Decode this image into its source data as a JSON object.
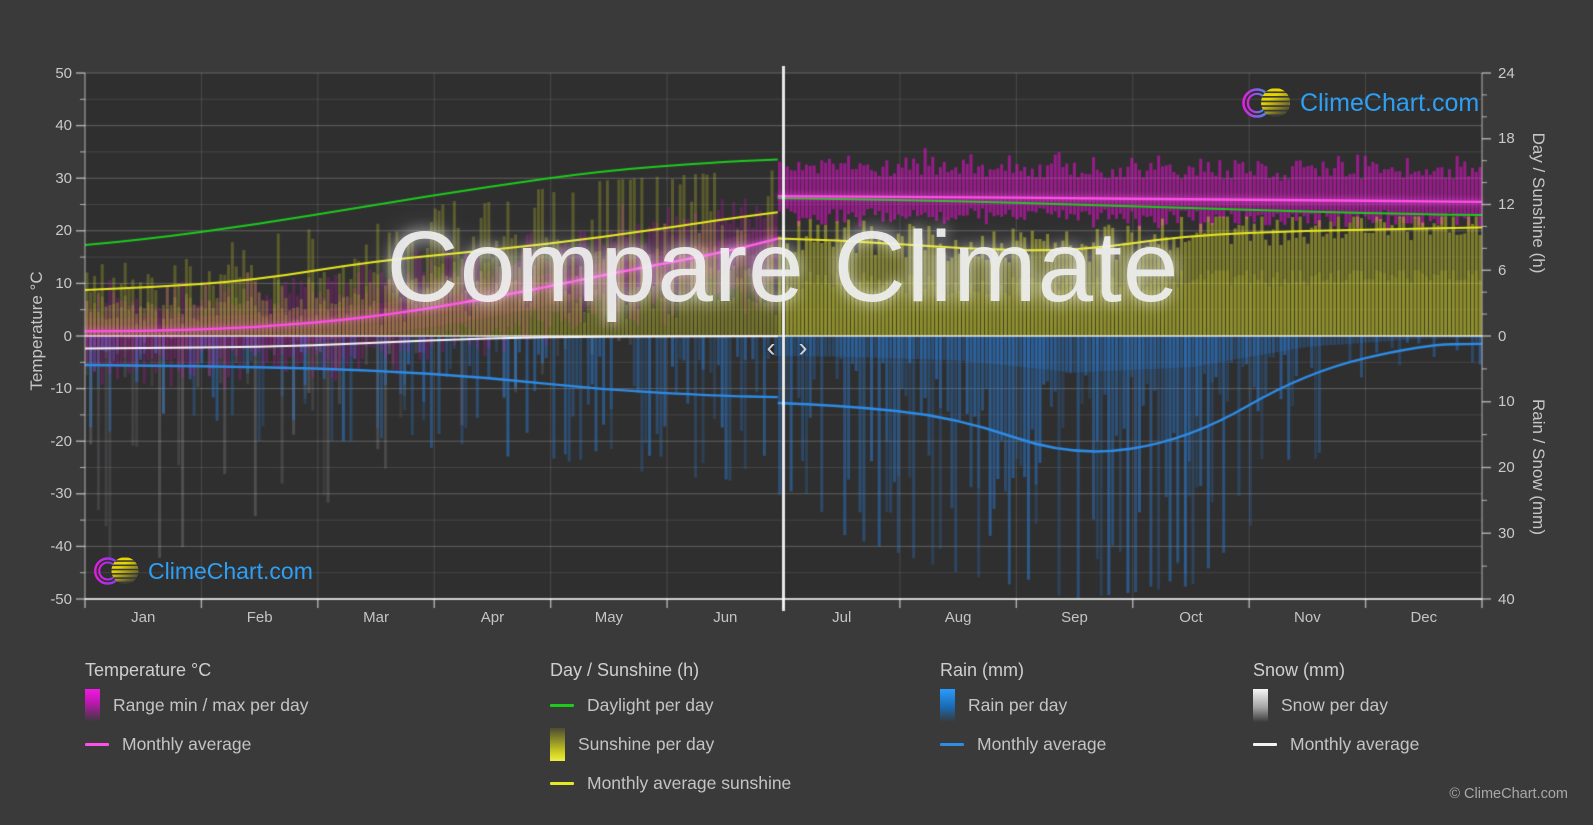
{
  "page": {
    "background": "#3a3a3a",
    "plot_background": "#2f2f2f"
  },
  "brand": {
    "name": "ClimeChart.com",
    "copyright": "© ClimeChart.com",
    "logo_text_color": "#2da0f5"
  },
  "watermark": {
    "text": "Compare Climate"
  },
  "nav": {
    "prev": "‹",
    "next": "›"
  },
  "axes": {
    "left_title": "Temperature °C",
    "left_ticks": [
      50,
      40,
      30,
      20,
      10,
      0,
      -10,
      -20,
      -30,
      -40,
      -50
    ],
    "right_top_title": "Day / Sunshine (h)",
    "right_day_ticks": [
      24,
      18,
      12,
      6
    ],
    "right_bottom_title": "Rain / Snow (mm)",
    "right_mm_ticks": [
      0,
      10,
      20,
      30,
      40
    ],
    "months": [
      "Jan",
      "Feb",
      "Mar",
      "Apr",
      "May",
      "Jun",
      "Jul",
      "Aug",
      "Sep",
      "Oct",
      "Nov",
      "Dec"
    ]
  },
  "legend": {
    "temperature": {
      "title": "Temperature °C",
      "items": [
        {
          "swatch": "bar-magenta",
          "label": "Range min / max per day"
        },
        {
          "swatch": "line-magenta",
          "label": "Monthly average"
        }
      ]
    },
    "day_sunshine": {
      "title": "Day / Sunshine (h)",
      "items": [
        {
          "swatch": "line-green",
          "label": "Daylight per day"
        },
        {
          "swatch": "bar-yellow",
          "label": "Sunshine per day"
        },
        {
          "swatch": "line-yellow",
          "label": "Monthly average sunshine"
        }
      ]
    },
    "rain": {
      "title": "Rain (mm)",
      "items": [
        {
          "swatch": "bar-blue",
          "label": "Rain per day"
        },
        {
          "swatch": "line-blue",
          "label": "Monthly average"
        }
      ]
    },
    "snow": {
      "title": "Snow (mm)",
      "items": [
        {
          "swatch": "bar-white",
          "label": "Snow per day"
        },
        {
          "swatch": "line-white",
          "label": "Monthly average"
        }
      ]
    }
  },
  "chart_data": {
    "type": "line",
    "title": "Compare Climate",
    "note": "Split comparison chart: Jan–Jun shows one location, Jul–Dec another, separated by a vertical divider with prev/next arrows at end of June. Daily bars give texture; lines are monthly averages.",
    "months": [
      "Jan",
      "Feb",
      "Mar",
      "Apr",
      "May",
      "Jun",
      "Jul",
      "Aug",
      "Sep",
      "Oct",
      "Nov",
      "Dec"
    ],
    "axes": {
      "temperature_c": {
        "range": [
          -50,
          50
        ],
        "side": "left",
        "gridline_step": 5
      },
      "day_sunshine_h": {
        "range": [
          0,
          24
        ],
        "side": "right-top"
      },
      "rain_snow_mm": {
        "range": [
          0,
          40
        ],
        "side": "right-bottom",
        "direction": "downward"
      }
    },
    "series": {
      "daylight_h": {
        "label": "Daylight per day",
        "kind": "line",
        "color": "#1ccb1c",
        "axis": "day_sunshine_h",
        "monthly": [
          8.8,
          10.2,
          11.9,
          13.6,
          15.1,
          15.9,
          12.5,
          12.3,
          12.0,
          11.7,
          11.35,
          11.1
        ],
        "endpoints": [
          8.3,
          16.1,
          12.6,
          11.05
        ]
      },
      "sunshine_avg_h": {
        "label": "Monthly average sunshine",
        "kind": "line",
        "color": "#e8e820",
        "axis": "day_sunshine_h",
        "monthly": [
          4.4,
          5.1,
          6.8,
          7.8,
          9.0,
          10.6,
          8.8,
          8.0,
          7.7,
          9.2,
          9.6,
          9.8
        ],
        "endpoints": [
          4.2,
          11.3,
          8.9,
          9.9
        ]
      },
      "sunshine_daily_h": {
        "label": "Sunshine per day",
        "kind": "bar-up",
        "color": "#caca2d",
        "axis": "day_sunshine_h"
      },
      "temp_avg_c": {
        "label": "Monthly average",
        "kind": "line",
        "color": "#ff4fe8",
        "axis": "temperature_c",
        "monthly": [
          0.9,
          1.6,
          3.5,
          7.0,
          11.6,
          15.8,
          26.5,
          26.4,
          26.2,
          26.0,
          25.8,
          25.6
        ],
        "endpoints": [
          0.9,
          18.5,
          26.6,
          25.5
        ]
      },
      "temp_range_c": {
        "label": "Range min / max per day",
        "kind": "band",
        "color": "#ff0ae6",
        "axis": "temperature_c",
        "monthly_max": [
          5,
          6,
          8.5,
          12,
          17,
          21.5,
          31.5,
          31.3,
          31.0,
          30.8,
          30.6,
          30.5
        ],
        "monthly_min": [
          -3.5,
          -3,
          -1,
          2.5,
          6.5,
          10.5,
          23.5,
          23.4,
          23.2,
          23.0,
          22.8,
          22.7
        ]
      },
      "rain_avg_mm": {
        "label": "Monthly average",
        "kind": "line",
        "color": "#2d8ce6",
        "axis": "rain_snow_mm",
        "monthly": [
          4.5,
          4.7,
          5.2,
          6.3,
          8.2,
          9.1,
          10.5,
          12.3,
          18.5,
          15.8,
          5.5,
          1.3
        ],
        "endpoints": [
          4.4,
          9.3,
          10.2,
          1.2
        ]
      },
      "rain_daily_mm": {
        "label": "Rain per day",
        "kind": "bar-down",
        "color": "#287dd7",
        "axis": "rain_snow_mm",
        "daily_max_monthly": [
          16,
          16,
          16,
          18,
          20,
          22,
          30,
          36,
          40,
          38,
          20,
          8
        ]
      },
      "snow_avg_mm": {
        "label": "Monthly average",
        "kind": "line",
        "color": "#f2f2f2",
        "axis": "rain_snow_mm",
        "monthly": [
          1.8,
          1.7,
          1.1,
          0.3,
          0.08,
          0.05,
          0,
          0,
          0,
          0,
          0,
          0
        ],
        "endpoints": [
          1.9,
          0.05,
          0,
          0
        ]
      },
      "snow_daily_mm": {
        "label": "Snow per day",
        "kind": "bar-down",
        "color": "#cdcdd7",
        "axis": "rain_snow_mm",
        "daily_max_monthly": [
          36,
          36,
          30,
          16,
          6,
          0,
          0,
          0,
          0,
          0,
          0,
          0
        ]
      }
    }
  }
}
